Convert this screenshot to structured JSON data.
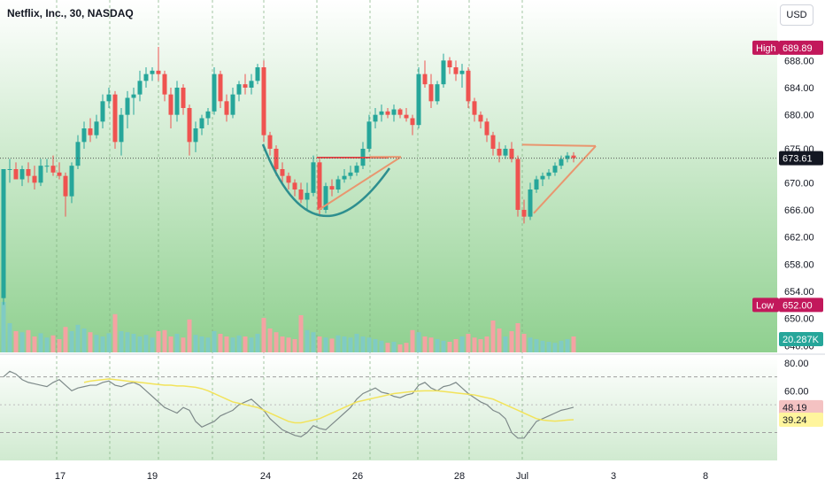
{
  "title": "Netflix, Inc., 30, NASDAQ",
  "currency_button": "USD",
  "colors": {
    "up": "#26a69a",
    "down": "#ef5350",
    "upvol": "#80cbc4",
    "downvol": "#f4a3a3",
    "bg_top": "#ffffff",
    "bg_bottom": "#8fd08f",
    "rsi_line": "#7e8a8a",
    "rsi_ma": "#f2e35a",
    "pattern_cup": "#2e8f8f",
    "pattern_tri": "#e9966f",
    "pattern_red": "#e64a4a",
    "last_price": "#131722",
    "high_badge": "#c2185b",
    "low_badge": "#c2185b"
  },
  "chart_data": {
    "type": "candlestick",
    "symbol": "Netflix, Inc.",
    "interval": "30",
    "exchange": "NASDAQ",
    "price_axis": {
      "ticks": [
        "688.00",
        "684.00",
        "680.00",
        "675.00",
        "670.00",
        "666.00",
        "662.00",
        "658.00",
        "654.00",
        "650.00",
        "646.00"
      ],
      "ylim": [
        645,
        693
      ]
    },
    "high_label": {
      "text": "High",
      "value": "689.89"
    },
    "low_label": {
      "text": "Low",
      "value": "652.00"
    },
    "last_price": "673.61",
    "volume_label": "20.287K",
    "rsi_axis": {
      "ticks": [
        "80.00",
        "60.00"
      ],
      "ylim": [
        10,
        85
      ]
    },
    "rsi_value": "48.19",
    "rsi_ma_value": "39.24",
    "x_ticks": [
      "17",
      "19",
      "24",
      "26",
      "28",
      "Jul",
      "3",
      "8"
    ],
    "candles": [
      [
        1,
        653,
        672,
        652,
        672
      ],
      [
        2,
        672,
        673.5,
        670,
        672
      ],
      [
        3,
        672,
        673,
        670.5,
        670.5
      ],
      [
        4,
        670.5,
        672.5,
        669.5,
        672
      ],
      [
        5,
        672,
        673,
        670,
        671
      ],
      [
        6,
        671,
        672.5,
        669,
        670
      ],
      [
        7,
        670,
        673.5,
        669.5,
        672.5
      ],
      [
        8,
        672.5,
        673.5,
        671.5,
        672.5
      ],
      [
        9,
        672.5,
        674,
        671,
        671.5
      ],
      [
        10,
        671.5,
        673,
        670.5,
        671
      ],
      [
        11,
        671,
        671.5,
        665,
        668
      ],
      [
        12,
        668,
        673,
        667,
        672.5
      ],
      [
        13,
        672.5,
        677,
        672,
        676
      ],
      [
        14,
        676,
        679,
        675,
        678
      ],
      [
        15,
        678,
        679.5,
        676,
        677
      ],
      [
        16,
        677,
        680,
        676.5,
        679
      ],
      [
        17,
        679,
        683,
        678,
        682
      ],
      [
        18,
        682,
        684,
        681,
        683
      ],
      [
        19,
        683,
        683.5,
        675,
        676
      ],
      [
        20,
        676,
        681,
        674,
        680
      ],
      [
        21,
        680,
        683.5,
        678,
        682.5
      ],
      [
        22,
        682.5,
        684,
        680,
        683
      ],
      [
        23,
        683,
        686.5,
        682,
        685
      ],
      [
        24,
        685,
        687,
        684,
        686
      ],
      [
        25,
        686,
        687,
        685,
        686.5
      ],
      [
        26,
        686.5,
        690,
        685,
        686
      ],
      [
        27,
        686,
        686.5,
        682,
        683
      ],
      [
        28,
        683,
        684,
        678,
        680
      ],
      [
        29,
        680,
        685,
        679,
        684
      ],
      [
        30,
        684,
        684.5,
        680,
        681
      ],
      [
        31,
        681,
        681.5,
        674,
        676
      ],
      [
        32,
        676,
        679,
        674.5,
        678
      ],
      [
        33,
        678,
        680,
        677,
        679.5
      ],
      [
        34,
        679.5,
        681,
        678.5,
        680.5
      ],
      [
        35,
        680.5,
        687,
        680,
        686
      ],
      [
        36,
        686,
        686.5,
        681,
        682
      ],
      [
        37,
        682,
        683,
        679,
        680
      ],
      [
        38,
        680,
        684,
        679.5,
        683
      ],
      [
        39,
        683,
        685,
        682,
        684.5
      ],
      [
        40,
        684.5,
        686,
        683,
        684
      ],
      [
        41,
        684,
        686,
        683,
        685
      ],
      [
        42,
        685,
        687.5,
        684.5,
        687
      ],
      [
        43,
        687,
        688,
        676,
        677
      ],
      [
        44,
        677,
        677.5,
        674,
        675
      ],
      [
        45,
        675,
        675.5,
        671,
        672
      ],
      [
        46,
        672,
        673,
        670,
        671
      ],
      [
        47,
        671,
        671.5,
        669,
        670
      ],
      [
        48,
        670,
        670.5,
        668,
        669
      ],
      [
        49,
        669,
        670,
        667,
        667.5
      ],
      [
        50,
        667.5,
        670,
        666,
        668.5
      ],
      [
        51,
        668.5,
        674,
        668,
        673
      ],
      [
        52,
        673,
        673.5,
        665,
        666
      ],
      [
        53,
        666,
        670,
        665.5,
        669.5
      ],
      [
        54,
        669.5,
        670.5,
        668,
        669
      ],
      [
        55,
        669,
        671,
        668.5,
        670.5
      ],
      [
        56,
        670.5,
        672,
        670,
        671
      ],
      [
        57,
        671,
        672.5,
        670.5,
        671.5
      ],
      [
        58,
        671.5,
        673,
        671,
        672.5
      ],
      [
        59,
        672.5,
        676,
        672,
        675
      ],
      [
        60,
        675,
        680,
        674.5,
        679
      ],
      [
        61,
        679,
        681,
        678,
        680
      ],
      [
        62,
        680,
        681.5,
        679,
        680.5
      ],
      [
        63,
        680.5,
        681,
        679.5,
        680
      ],
      [
        64,
        680,
        681.5,
        679,
        680.8
      ],
      [
        65,
        680.8,
        681,
        679.5,
        680
      ],
      [
        66,
        680,
        681,
        679,
        679.5
      ],
      [
        67,
        679.5,
        680,
        677,
        678.5
      ],
      [
        68,
        678.5,
        687,
        678,
        686
      ],
      [
        69,
        686,
        688,
        684,
        684.5
      ],
      [
        70,
        684.5,
        686,
        681,
        682
      ],
      [
        71,
        682,
        685,
        681.5,
        684.5
      ],
      [
        72,
        684.5,
        689,
        684,
        688
      ],
      [
        73,
        688,
        688.5,
        686,
        687
      ],
      [
        74,
        687,
        688,
        685,
        686
      ],
      [
        75,
        686,
        687.5,
        684,
        686.5
      ],
      [
        76,
        686.5,
        687,
        681,
        682
      ],
      [
        77,
        682,
        682.5,
        679,
        680
      ],
      [
        78,
        680,
        680.5,
        678,
        679
      ],
      [
        79,
        679,
        679.5,
        676,
        677
      ],
      [
        80,
        677,
        677.5,
        674,
        675
      ],
      [
        81,
        675,
        676,
        673,
        674
      ],
      [
        82,
        674,
        675.5,
        673.5,
        675
      ],
      [
        83,
        675,
        676,
        673,
        673.5
      ],
      [
        84,
        673.5,
        674,
        665,
        666
      ],
      [
        85,
        666,
        667.5,
        664,
        665
      ],
      [
        86,
        665,
        670,
        664.5,
        669
      ],
      [
        87,
        669,
        671,
        668.5,
        670.5
      ],
      [
        88,
        670.5,
        671.5,
        669.5,
        671
      ],
      [
        89,
        671,
        672,
        670.5,
        671.5
      ],
      [
        90,
        671.5,
        673,
        671,
        672.5
      ],
      [
        91,
        672.5,
        674,
        672,
        673.5
      ],
      [
        92,
        673.5,
        674.5,
        673,
        674
      ],
      [
        93,
        674,
        674.5,
        673,
        673.61
      ]
    ],
    "volumes": [
      95,
      55,
      40,
      38,
      42,
      30,
      36,
      28,
      32,
      25,
      48,
      40,
      52,
      45,
      38,
      33,
      30,
      36,
      72,
      40,
      38,
      35,
      30,
      33,
      28,
      40,
      42,
      30,
      35,
      28,
      62,
      33,
      30,
      28,
      40,
      35,
      30,
      28,
      32,
      30,
      28,
      35,
      65,
      45,
      38,
      30,
      28,
      25,
      70,
      42,
      38,
      30,
      28,
      26,
      32,
      30,
      28,
      35,
      30,
      28,
      25,
      22,
      18,
      20,
      15,
      18,
      42,
      38,
      30,
      28,
      25,
      22,
      20,
      25,
      30,
      35,
      28,
      25,
      30,
      60,
      45,
      30,
      40,
      55,
      35,
      28,
      25,
      22,
      20,
      18,
      22,
      25,
      30
    ],
    "rsi": [
      70,
      74,
      72,
      68,
      66,
      65,
      64,
      63,
      66,
      68,
      64,
      60,
      62,
      63,
      64,
      64,
      66,
      67,
      64,
      63,
      65,
      66,
      64,
      60,
      56,
      52,
      48,
      46,
      44,
      48,
      46,
      38,
      34,
      36,
      38,
      42,
      44,
      46,
      50,
      52,
      54,
      50,
      46,
      40,
      36,
      32,
      30,
      28,
      27,
      30,
      35,
      33,
      32,
      36,
      40,
      44,
      48,
      54,
      58,
      60,
      62,
      59,
      58,
      56,
      55,
      57,
      58,
      64,
      66,
      62,
      60,
      63,
      64,
      66,
      62,
      58,
      55,
      52,
      50,
      46,
      44,
      40,
      30,
      26,
      26,
      32,
      38,
      40,
      42,
      44,
      46,
      47,
      48.19
    ],
    "rsi_ma": [
      66,
      67,
      67.5,
      68,
      68.5,
      68,
      67.5,
      67,
      66.5,
      66,
      65.5,
      65,
      64.5,
      64,
      64,
      63.5,
      63.5,
      63,
      62.5,
      61.5,
      60,
      58,
      56,
      54,
      52,
      51,
      50,
      49,
      48,
      46,
      44,
      42,
      40,
      38,
      37,
      37,
      38,
      39,
      40,
      42,
      44,
      46,
      48,
      50,
      52,
      53,
      54,
      55,
      56,
      57,
      58,
      58.5,
      59,
      59.5,
      59.8,
      60,
      60,
      60,
      59.5,
      59,
      58.5,
      58,
      57.5,
      57,
      56,
      55,
      54,
      52,
      50,
      48,
      46,
      44,
      42,
      40,
      39,
      38.5,
      38.2,
      38.5,
      39,
      39.24
    ],
    "annotations": [
      "cup-curve",
      "flag-triangle",
      "resistance-line"
    ]
  }
}
